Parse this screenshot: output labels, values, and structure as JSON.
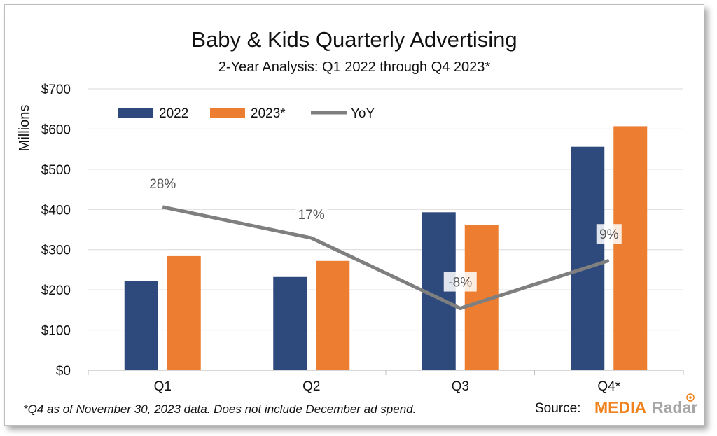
{
  "chart_data": {
    "type": "bar",
    "title": "Baby & Kids Quarterly Advertising",
    "subtitle": "2-Year Analysis: Q1 2022 through Q4 2023*",
    "ylabel": "Millions",
    "xlabel": "",
    "categories": [
      "Q1",
      "Q2",
      "Q3",
      "Q4*"
    ],
    "ylim": [
      0,
      700
    ],
    "yticks": [
      0,
      100,
      200,
      300,
      400,
      500,
      600,
      700
    ],
    "ytick_labels": [
      "$0",
      "$100",
      "$200",
      "$300",
      "$400",
      "$500",
      "$600",
      "$700"
    ],
    "grid": true,
    "legend_position": "top-left",
    "series": [
      {
        "name": "2022",
        "type": "bar",
        "color": "#2e4a7d",
        "values": [
          222,
          232,
          393,
          556
        ]
      },
      {
        "name": "2023*",
        "type": "bar",
        "color": "#ed7d31",
        "values": [
          284,
          272,
          362,
          607
        ]
      },
      {
        "name": "YoY",
        "type": "line",
        "color": "#7f7f7f",
        "values": [
          28,
          17,
          -8,
          9
        ],
        "labels": [
          "28%",
          "17%",
          "-8%",
          "9%"
        ]
      }
    ]
  },
  "footnote": "*Q4 as of November 30, 2023 data. Does not include December ad spend.",
  "source": {
    "label": "Source:",
    "logo_part1": "MEDIA",
    "logo_part2": "Radar"
  }
}
